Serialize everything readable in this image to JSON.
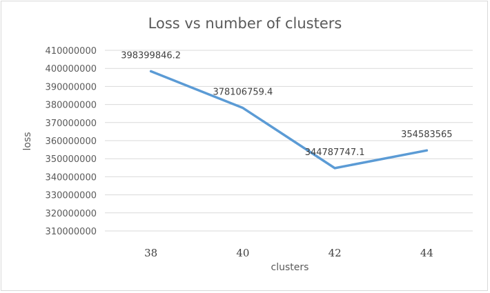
{
  "chart_data": {
    "type": "line",
    "title": "Loss vs number of clusters",
    "xlabel": "clusters",
    "ylabel": "loss",
    "categories": [
      "38",
      "40",
      "42",
      "44"
    ],
    "series": [
      {
        "values": [
          398399846.2,
          378106759.4,
          344787747.1,
          354583565
        ],
        "labels": [
          "398399846.2",
          "378106759.4",
          "344787747.1",
          "354583565"
        ],
        "color": "#5b9bd5"
      }
    ],
    "ylim": [
      310000000,
      410000000
    ],
    "ytick_step": 10000000,
    "yticks": [
      "410000000",
      "400000000",
      "390000000",
      "380000000",
      "370000000",
      "360000000",
      "350000000",
      "340000000",
      "330000000",
      "320000000",
      "310000000"
    ],
    "grid": true,
    "legend": "none"
  }
}
